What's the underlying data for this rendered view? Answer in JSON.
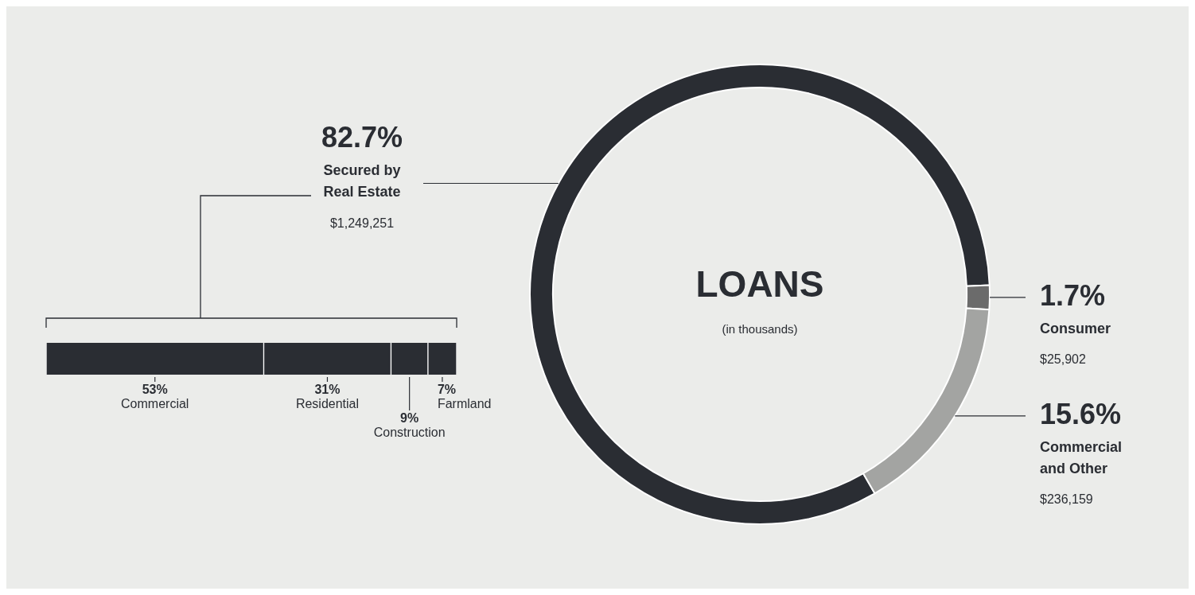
{
  "chart_data": [
    {
      "type": "donut",
      "title": "LOANS",
      "subtitle": "(in thousands)",
      "categories": [
        "Secured by Real Estate",
        "Consumer",
        "Commercial and Other"
      ],
      "values": [
        82.7,
        1.7,
        15.6
      ],
      "colors": [
        "#2a2d33",
        "#6b6b6b",
        "#a3a4a2"
      ],
      "value_labels": [
        "82.7%",
        "1.7%",
        "15.6%"
      ],
      "annotations": [
        "$1,249,251",
        "$25,902",
        "$236,159"
      ]
    },
    {
      "type": "bar",
      "orientation": "horizontal",
      "stacked": true,
      "xlim": [
        0,
        100
      ],
      "tick_labels": false,
      "categories": [
        null
      ],
      "series": [
        {
          "name": "Commercial",
          "color": "#2a2d33",
          "values": [
            53
          ],
          "value_labels": [
            "53%"
          ]
        },
        {
          "name": "Residential",
          "color": "#2a2d33",
          "values": [
            31
          ],
          "value_labels": [
            "31%"
          ]
        },
        {
          "name": "Construction",
          "color": "#2a2d33",
          "values": [
            9
          ],
          "value_labels": [
            "9%"
          ]
        },
        {
          "name": "Farmland",
          "color": "#2a2d33",
          "values": [
            7
          ],
          "value_labels": [
            "7%"
          ]
        }
      ]
    }
  ]
}
